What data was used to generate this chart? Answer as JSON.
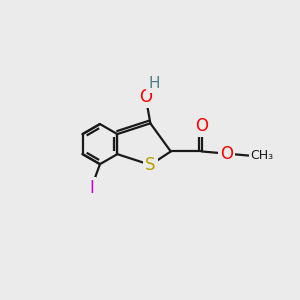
{
  "bg_color": "#ebebeb",
  "bond_color": "#1a1a1a",
  "bond_width": 1.6,
  "atom_colors": {
    "S": "#b8a000",
    "O": "#ff0000",
    "H": "#4a7f8a",
    "I": "#cc00cc",
    "C": "#1a1a1a"
  },
  "font_size": 12,
  "font_size_methyl": 10,
  "xlim": [
    0,
    10
  ],
  "ylim": [
    0,
    10
  ],
  "figsize": [
    3.0,
    3.0
  ],
  "dpi": 100
}
